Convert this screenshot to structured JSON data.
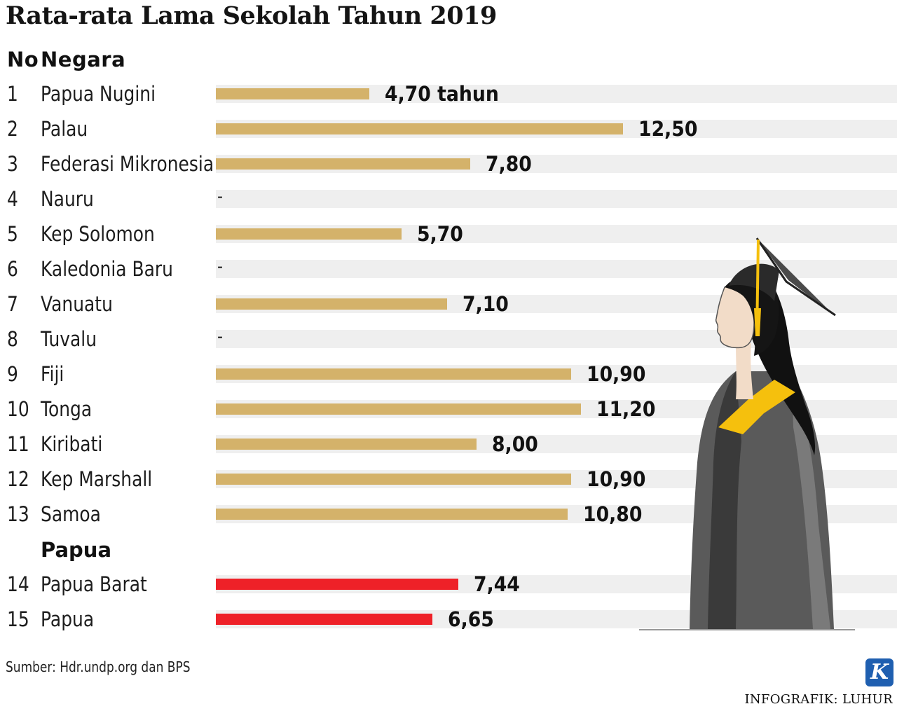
{
  "title": "Rata-rata Lama Sekolah Tahun 2019",
  "header": {
    "no": "No",
    "country": "Negara"
  },
  "group_label": "Papua",
  "source": "Sumber: Hdr.undp.org dan BPS",
  "credit": "INFOGRAFIK: LUHUR",
  "logo_letter": "K",
  "colors": {
    "pacific": "#d4b26a",
    "papua": "#ee2128",
    "band": "#efefef"
  },
  "chart_data": {
    "type": "bar",
    "orientation": "horizontal",
    "title": "Rata-rata Lama Sekolah Tahun 2019",
    "xlim": [
      0,
      17.5
    ],
    "series": [
      {
        "color": "#d4b26a",
        "items": [
          {
            "no": "1",
            "name": "Papua Nugini",
            "value": 4.7,
            "label": "4,70 tahun"
          },
          {
            "no": "2",
            "name": "Palau",
            "value": 12.5,
            "label": "12,50"
          },
          {
            "no": "3",
            "name": "Federasi Mikronesia",
            "value": 7.8,
            "label": "7,80"
          },
          {
            "no": "4",
            "name": "Nauru",
            "value": null,
            "label": "-"
          },
          {
            "no": "5",
            "name": "Kep Solomon",
            "value": 5.7,
            "label": "5,70"
          },
          {
            "no": "6",
            "name": "Kaledonia Baru",
            "value": null,
            "label": "-"
          },
          {
            "no": "7",
            "name": "Vanuatu",
            "value": 7.1,
            "label": "7,10"
          },
          {
            "no": "8",
            "name": "Tuvalu",
            "value": null,
            "label": "-"
          },
          {
            "no": "9",
            "name": "Fiji",
            "value": 10.9,
            "label": "10,90"
          },
          {
            "no": "10",
            "name": "Tonga",
            "value": 11.2,
            "label": "11,20"
          },
          {
            "no": "11",
            "name": "Kiribati",
            "value": 8.0,
            "label": "8,00"
          },
          {
            "no": "12",
            "name": "Kep Marshall",
            "value": 10.9,
            "label": "10,90"
          },
          {
            "no": "13",
            "name": "Samoa",
            "value": 10.8,
            "label": "10,80"
          }
        ]
      },
      {
        "name": "Papua",
        "color": "#ee2128",
        "items": [
          {
            "no": "14",
            "name": "Papua Barat",
            "value": 7.44,
            "label": "7,44"
          },
          {
            "no": "15",
            "name": "Papua",
            "value": 6.65,
            "label": "6,65"
          }
        ]
      }
    ]
  }
}
